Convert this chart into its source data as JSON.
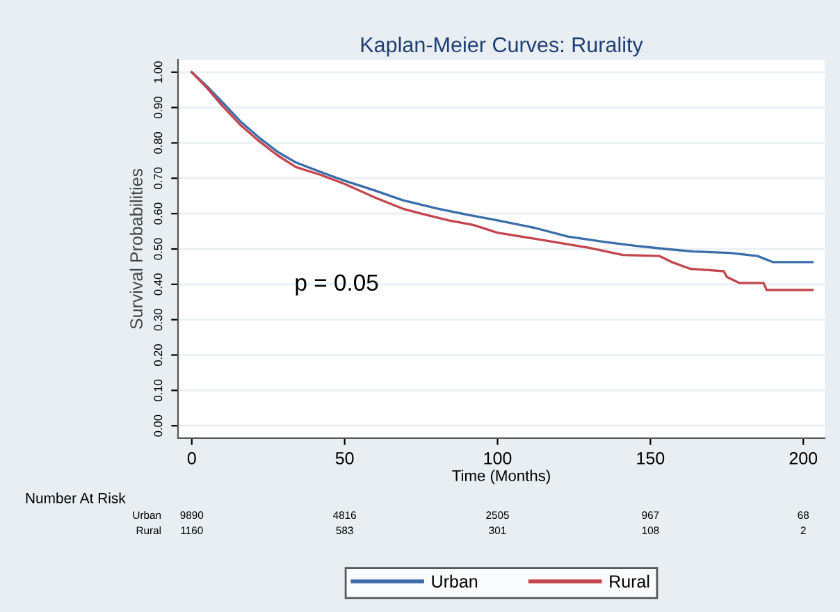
{
  "chart_data": {
    "type": "line",
    "title": "Kaplan-Meier Curves: Rurality",
    "xlabel": "Time (Months)",
    "ylabel": "Survival Probabilities",
    "xlim": [
      -4.5,
      207
    ],
    "xticks": [
      0,
      50,
      100,
      150,
      200
    ],
    "ylim": [
      -0.035,
      1.035
    ],
    "yticks": [
      {
        "value": 0,
        "label": "0.00"
      },
      {
        "value": 0.1,
        "label": "0.10"
      },
      {
        "value": 0.2,
        "label": "0.20"
      },
      {
        "value": 0.3,
        "label": "0.30"
      },
      {
        "value": 0.4,
        "label": "0.40"
      },
      {
        "value": 0.5,
        "label": "0.50"
      },
      {
        "value": 0.6,
        "label": "0.60"
      },
      {
        "value": 0.7,
        "label": "0.70"
      },
      {
        "value": 0.8,
        "label": "0.80"
      },
      {
        "value": 0.9,
        "label": "0.90"
      },
      {
        "value": 1,
        "label": "1.00"
      }
    ],
    "grid": "y",
    "legend": "bottom",
    "series": [
      {
        "name": "Urban",
        "color": "#3b6ea8",
        "x": [
          0,
          5,
          10,
          16,
          22,
          28,
          34,
          42,
          50,
          60,
          69,
          80,
          90,
          100,
          112,
          123,
          135,
          145,
          155,
          164,
          176,
          185,
          190,
          203
        ],
        "values": [
          1.0,
          0.96,
          0.915,
          0.86,
          0.815,
          0.775,
          0.745,
          0.718,
          0.693,
          0.665,
          0.638,
          0.615,
          0.597,
          0.581,
          0.56,
          0.535,
          0.52,
          0.509,
          0.5,
          0.493,
          0.489,
          0.48,
          0.463,
          0.463
        ]
      },
      {
        "name": "Rural",
        "color": "#c4454d",
        "x": [
          0,
          5,
          10,
          16,
          22,
          28,
          34,
          42,
          50,
          60,
          69,
          75,
          84,
          92,
          100,
          115,
          130,
          141,
          153,
          157,
          163,
          174,
          175,
          179,
          187,
          188,
          203
        ],
        "values": [
          1.0,
          0.955,
          0.905,
          0.85,
          0.805,
          0.765,
          0.732,
          0.71,
          0.684,
          0.645,
          0.614,
          0.6,
          0.581,
          0.568,
          0.546,
          0.525,
          0.503,
          0.483,
          0.48,
          0.463,
          0.444,
          0.437,
          0.421,
          0.404,
          0.404,
          0.384,
          0.384
        ]
      }
    ],
    "annotations": [
      "p = 0.05",
      "Number At Risk",
      "Urban",
      "9890",
      "4816",
      "2505",
      "967",
      "68",
      "Rural",
      "1160",
      "583",
      "301",
      "108",
      "2"
    ]
  }
}
